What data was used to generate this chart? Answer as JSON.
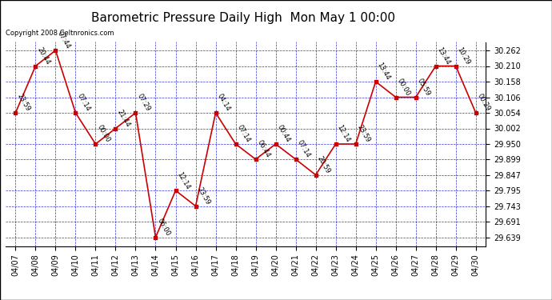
{
  "title": "Barometric Pressure Daily High  Mon May 1 00:00",
  "copyright": "Copyright 2008 Celtnronics.com",
  "x_labels": [
    "04/07",
    "04/08",
    "04/09",
    "04/10",
    "04/11",
    "04/12",
    "04/13",
    "04/14",
    "04/15",
    "04/16",
    "04/17",
    "04/18",
    "04/19",
    "04/20",
    "04/21",
    "04/22",
    "04/23",
    "04/24",
    "04/25",
    "04/26",
    "04/27",
    "04/28",
    "04/29",
    "04/30"
  ],
  "y_values": [
    30.054,
    30.21,
    30.262,
    30.054,
    29.95,
    30.002,
    30.054,
    29.639,
    29.795,
    29.743,
    30.054,
    29.95,
    29.899,
    29.95,
    29.899,
    29.847,
    29.95,
    29.95,
    30.158,
    30.106,
    30.106,
    30.21,
    30.21,
    30.054
  ],
  "point_labels": [
    "23:59",
    "20:44",
    "07:44",
    "07:14",
    "00:00",
    "21:44",
    "07:29",
    "06:00",
    "12:14",
    "23:59",
    "04:14",
    "07:14",
    "06:44",
    "00:44",
    "07:14",
    "20:59",
    "12:14",
    "23:59",
    "13:44",
    "00:00",
    "05:59",
    "13:44",
    "10:29",
    "00:29"
  ],
  "line_color": "#cc0000",
  "point_color": "#cc0000",
  "bg_color": "#ffffff",
  "grid_color": "#0000cc",
  "ylim_min": 29.61,
  "ylim_max": 30.29,
  "yticks": [
    29.639,
    29.691,
    29.743,
    29.795,
    29.847,
    29.899,
    29.95,
    30.002,
    30.054,
    30.106,
    30.158,
    30.21,
    30.262
  ],
  "title_fontsize": 11,
  "tick_fontsize": 7,
  "label_fontsize": 6,
  "copyright_fontsize": 6
}
